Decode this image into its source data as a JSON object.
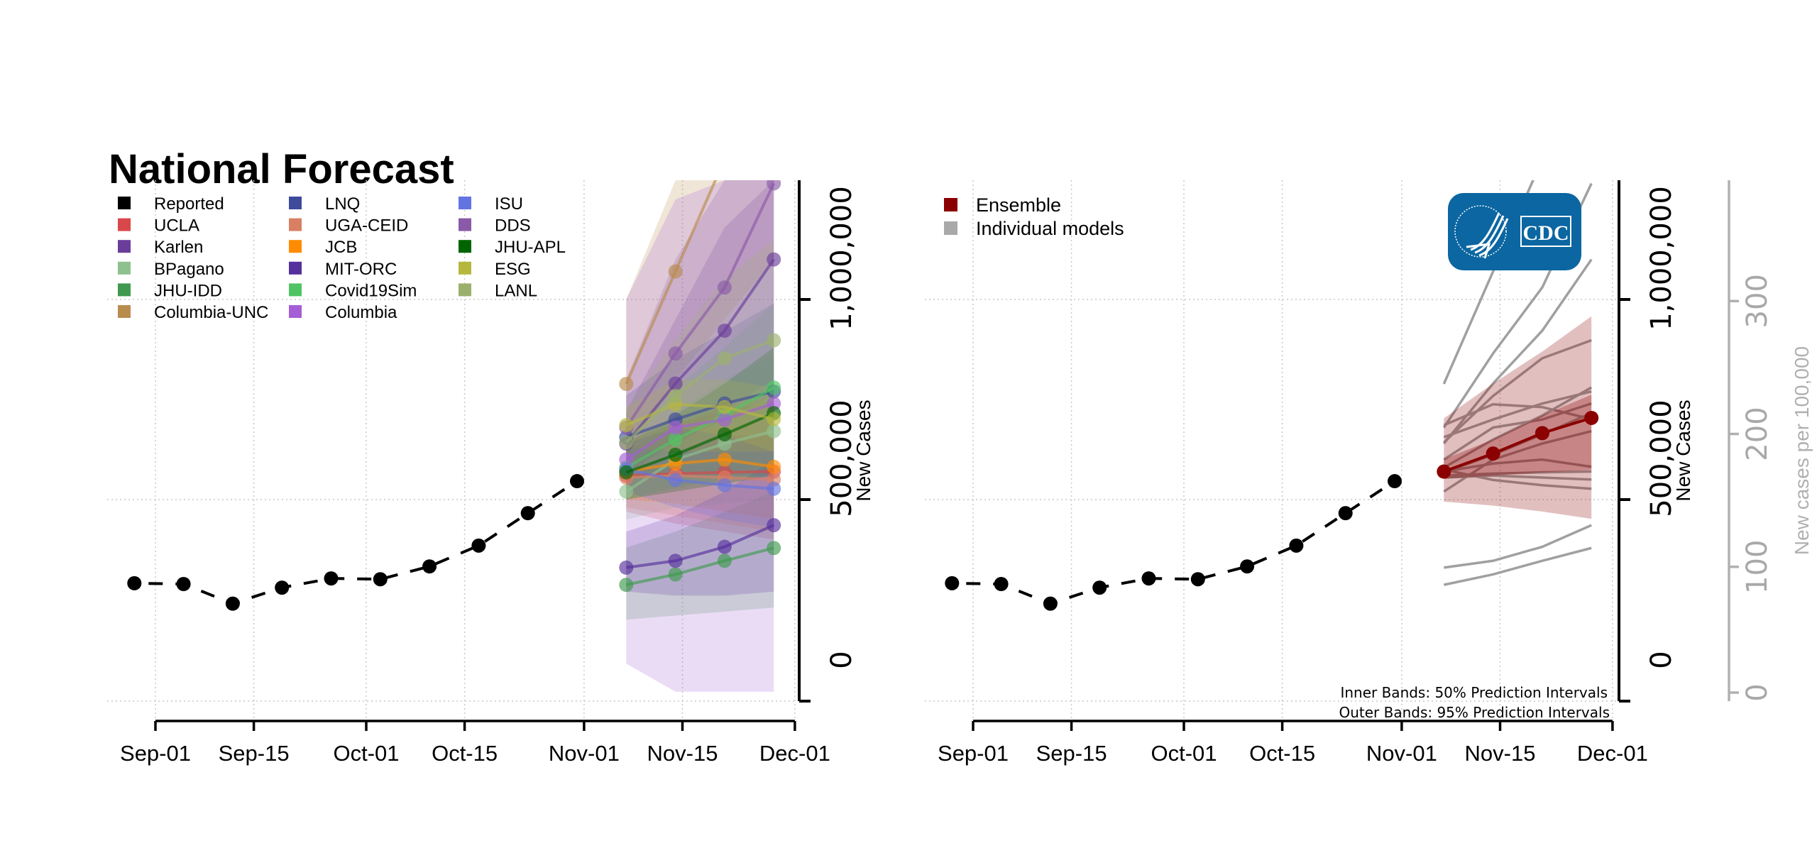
{
  "title": "National Forecast",
  "chart_data": [
    {
      "type": "line",
      "name": "Individual model forecasts",
      "title": "National Forecast",
      "xlabel": "",
      "ylabel": "New Cases",
      "ylim": [
        -50000,
        1300000
      ],
      "yticks": [
        0,
        500000,
        1000000
      ],
      "ytick_labels": [
        "0",
        "500,000",
        "1,000,000"
      ],
      "xticks": [
        "Sep-01",
        "Sep-15",
        "Oct-01",
        "Oct-15",
        "Nov-01",
        "Nov-15",
        "Dec-01"
      ],
      "xtick_days": [
        0,
        14,
        30,
        44,
        61,
        75,
        91
      ],
      "grid": true,
      "legend_position": "top-left",
      "reported": {
        "name": "Reported",
        "color": "#000000",
        "dates": [
          "Aug-29",
          "Sep-05",
          "Sep-12",
          "Sep-19",
          "Sep-26",
          "Oct-03",
          "Oct-10",
          "Oct-17",
          "Oct-24",
          "Oct-31"
        ],
        "days": [
          -3,
          4,
          11,
          18,
          25,
          32,
          39,
          46,
          53,
          60
        ],
        "values": [
          291000,
          289000,
          240000,
          280000,
          303000,
          301000,
          333000,
          385000,
          466000,
          546000
        ]
      },
      "forecast_dates": [
        "Nov-07",
        "Nov-14",
        "Nov-21",
        "Nov-28"
      ],
      "forecast_days": [
        67,
        74,
        81,
        88
      ],
      "series": [
        {
          "name": "UCLA",
          "color": "#d9474b",
          "values": [
            560000,
            565000,
            568000,
            570000
          ],
          "lower": [
            470000,
            440000,
            420000,
            400000
          ],
          "upper": [
            650000,
            690000,
            720000,
            750000
          ]
        },
        {
          "name": "Karlen",
          "color": "#6a3d9a",
          "values": [
            640000,
            790000,
            922000,
            1100000
          ],
          "lower": [
            560000,
            640000,
            700000,
            760000
          ],
          "upper": [
            720000,
            950000,
            1180000,
            1450000
          ]
        },
        {
          "name": "BPagano",
          "color": "#8fc08f",
          "values": [
            520000,
            600000,
            640000,
            671000
          ],
          "lower": [
            450000,
            480000,
            490000,
            500000
          ],
          "upper": [
            590000,
            720000,
            800000,
            860000
          ]
        },
        {
          "name": "JHU-IDD",
          "color": "#3f9a4f",
          "values": [
            287000,
            313000,
            347000,
            379000
          ],
          "lower": [
            200000,
            210000,
            220000,
            230000
          ],
          "upper": [
            380000,
            420000,
            470000,
            520000
          ]
        },
        {
          "name": "Columbia-UNC",
          "color": "#b98c4e",
          "values": [
            789000,
            1070000,
            1350000,
            1650000
          ],
          "lower": [
            600000,
            800000,
            950000,
            1100000
          ],
          "upper": [
            1000000,
            1400000,
            1800000,
            2200000
          ]
        },
        {
          "name": "LNQ",
          "color": "#3e4a9b",
          "values": [
            656000,
            700000,
            740000,
            770000
          ],
          "lower": [
            560000,
            560000,
            560000,
            560000
          ],
          "upper": [
            760000,
            850000,
            920000,
            990000
          ]
        },
        {
          "name": "UGA-CEID",
          "color": "#d97f63",
          "values": [
            555000,
            560000,
            555000,
            550000
          ],
          "lower": [
            480000,
            460000,
            440000,
            420000
          ],
          "upper": [
            630000,
            660000,
            680000,
            700000
          ]
        },
        {
          "name": "JCB",
          "color": "#ff8c00",
          "values": [
            570000,
            590000,
            600000,
            582000
          ],
          "lower": [
            500000,
            490000,
            470000,
            450000
          ],
          "upper": [
            640000,
            690000,
            730000,
            760000
          ]
        },
        {
          "name": "MIT-ORC",
          "color": "#56309c",
          "values": [
            330000,
            347000,
            382000,
            436000
          ],
          "lower": [
            270000,
            260000,
            260000,
            270000
          ],
          "upper": [
            420000,
            460000,
            520000,
            600000
          ]
        },
        {
          "name": "Covid19Sim",
          "color": "#50c463",
          "values": [
            580000,
            650000,
            710000,
            780000
          ],
          "lower": [
            500000,
            530000,
            550000,
            560000
          ],
          "upper": [
            660000,
            780000,
            880000,
            990000
          ]
        },
        {
          "name": "Columbia",
          "color": "#a45fd6",
          "values": [
            600000,
            680000,
            700000,
            740000
          ],
          "lower": [
            90000,
            20000,
            20000,
            20000
          ],
          "upper": [
            1000000,
            1250000,
            1400000,
            1500000
          ]
        },
        {
          "name": "ISU",
          "color": "#6374e2",
          "values": [
            575000,
            549000,
            536000,
            527000
          ],
          "lower": [
            520000,
            480000,
            450000,
            430000
          ],
          "upper": [
            630000,
            620000,
            620000,
            620000
          ]
        },
        {
          "name": "DDS",
          "color": "#8a5aa8",
          "values": [
            680000,
            865000,
            1030000,
            1290000
          ],
          "lower": [
            560000,
            650000,
            720000,
            800000
          ],
          "upper": [
            800000,
            1100000,
            1400000,
            1800000
          ]
        },
        {
          "name": "JHU-APL",
          "color": "#006400",
          "values": [
            568000,
            612000,
            663000,
            716000
          ],
          "lower": [
            500000,
            520000,
            540000,
            560000
          ],
          "upper": [
            640000,
            710000,
            790000,
            880000
          ]
        },
        {
          "name": "ESG",
          "color": "#b5b83d",
          "values": [
            686000,
            738000,
            731000,
            701000
          ],
          "lower": [
            640000,
            680000,
            660000,
            620000
          ],
          "upper": [
            730000,
            800000,
            800000,
            780000
          ]
        },
        {
          "name": "LANL",
          "color": "#9bb06c",
          "values": [
            643000,
            759000,
            853000,
            898000
          ],
          "lower": [
            560000,
            620000,
            660000,
            660000
          ],
          "upper": [
            730000,
            900000,
            1050000,
            1150000
          ]
        }
      ]
    },
    {
      "type": "line",
      "name": "Ensemble forecast",
      "xlabel": "",
      "ylabel": "New Cases",
      "ylabel2": "New cases per 100,000",
      "ylim": [
        -50000,
        1300000
      ],
      "yticks": [
        0,
        500000,
        1000000
      ],
      "ytick_labels": [
        "0",
        "500,000",
        "1,000,000"
      ],
      "y2ticks": [
        0,
        100,
        200,
        300
      ],
      "y2_cases_per_unit": 3320,
      "xticks": [
        "Sep-01",
        "Sep-15",
        "Oct-01",
        "Oct-15",
        "Nov-01",
        "Nov-15",
        "Dec-01"
      ],
      "xtick_days": [
        0,
        14,
        30,
        44,
        61,
        75,
        91
      ],
      "grid": true,
      "legend_position": "top-left",
      "legend": [
        {
          "label": "Ensemble",
          "color": "#8b0000"
        },
        {
          "label": "Individual models",
          "color": "#a9a9a9"
        }
      ],
      "ensemble": {
        "name": "Ensemble",
        "color": "#8b0000",
        "values": [
          570000,
          615000,
          666000,
          704000
        ],
        "inner_lower": [
          552000,
          560000,
          568000,
          574000
        ],
        "inner_upper": [
          601000,
          650000,
          710000,
          762000
        ],
        "outer_lower": [
          495000,
          485000,
          470000,
          452000
        ],
        "outer_upper": [
          703000,
          790000,
          870000,
          958000
        ]
      },
      "individual_color": "#a0a0a0",
      "annotations": [
        "Inner Bands: 50% Prediction Intervals",
        "Outer Bands: 95% Prediction Intervals"
      ],
      "logo_text": "CDC"
    }
  ]
}
